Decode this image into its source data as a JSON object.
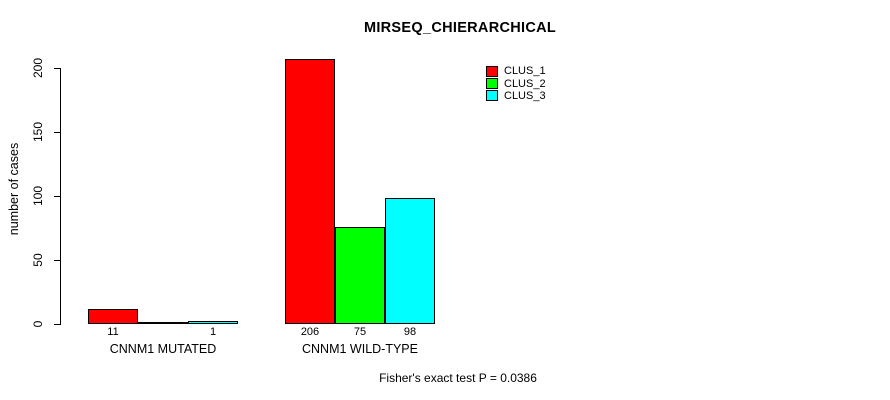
{
  "chart_data": {
    "type": "bar",
    "title": "MIRSEQ_CHIERARCHICAL",
    "xlabel": "",
    "ylabel": "number of cases",
    "ylim": [
      0,
      200
    ],
    "yticks": [
      0,
      50,
      100,
      150,
      200
    ],
    "grid": false,
    "legend_position": "top-right",
    "categories": [
      "CNNM1 MUTATED",
      "CNNM1 WILD-TYPE"
    ],
    "series": [
      {
        "name": "CLUS_1",
        "color": "#ff0000",
        "values": [
          11,
          206
        ]
      },
      {
        "name": "CLUS_2",
        "color": "#00ff00",
        "values": [
          0,
          75
        ]
      },
      {
        "name": "CLUS_3",
        "color": "#00ffff",
        "values": [
          1,
          98
        ]
      }
    ],
    "value_labels": [
      [
        "11",
        "",
        "1"
      ],
      [
        "206",
        "75",
        "98"
      ]
    ],
    "annotation": "Fisher's exact test P = 0.0386",
    "colors": {
      "axis": "#000000",
      "bar_border": "#000000",
      "background": "#ffffff",
      "text": "#000000"
    }
  }
}
